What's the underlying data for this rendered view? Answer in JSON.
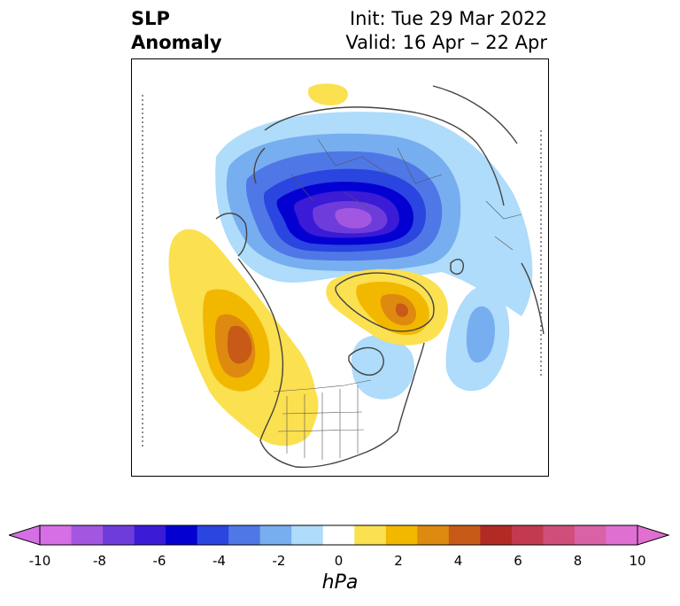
{
  "header": {
    "title_line1": "SLP",
    "title_line2": "Anomaly",
    "init_text": "Init: Tue 29 Mar 2022",
    "valid_text": "Valid: 16 Apr – 22 Apr"
  },
  "colorbar": {
    "unit": "hPa",
    "ticks": [
      "-10",
      "-8",
      "-6",
      "-4",
      "-2",
      "0",
      "2",
      "4",
      "6",
      "8",
      "10"
    ],
    "bins": [
      {
        "range": "-10 to -9",
        "color": "#d66fe6"
      },
      {
        "range": "-9 to -8",
        "color": "#a356e0"
      },
      {
        "range": "-8 to -7",
        "color": "#6f3cdc"
      },
      {
        "range": "-7 to -6",
        "color": "#3b1bd6"
      },
      {
        "range": "-6 to -5",
        "color": "#0400d2"
      },
      {
        "range": "-5 to -4",
        "color": "#2a45e0"
      },
      {
        "range": "-4 to -3",
        "color": "#4f78e6"
      },
      {
        "range": "-3 to -2",
        "color": "#77aef0"
      },
      {
        "range": "-2 to -1",
        "color": "#aedcfa"
      },
      {
        "range": "-1 to 1",
        "color": "#ffffff"
      },
      {
        "range": "1 to 2",
        "color": "#fbe050"
      },
      {
        "range": "2 to 3",
        "color": "#f2b800"
      },
      {
        "range": "3 to 4",
        "color": "#de8a10"
      },
      {
        "range": "4 to 5",
        "color": "#c85a18"
      },
      {
        "range": "5 to 6",
        "color": "#b22a24"
      },
      {
        "range": "6 to 7",
        "color": "#c33a50"
      },
      {
        "range": "7 to 8",
        "color": "#cf4f7a"
      },
      {
        "range": "8 to 9",
        "color": "#d962a6"
      },
      {
        "range": "9 to 10",
        "color": "#e06fd2"
      }
    ],
    "extend_low_color": "#d66fe6",
    "extend_high_color": "#e06fd2"
  },
  "map": {
    "projection": "north polar stereographic",
    "anomalies": [
      {
        "name": "arctic-low",
        "sign": "negative",
        "peak_hpa": -9
      },
      {
        "name": "northeast-pacific-high",
        "sign": "positive",
        "peak_hpa": 5
      },
      {
        "name": "greenland-high",
        "sign": "positive",
        "peak_hpa": 5
      },
      {
        "name": "north-atlantic-low",
        "sign": "negative",
        "peak_hpa": -3
      },
      {
        "name": "northern-eurasia-high",
        "sign": "positive",
        "peak_hpa": 2
      },
      {
        "name": "hudson-bay-low",
        "sign": "negative",
        "peak_hpa": -2
      }
    ]
  }
}
